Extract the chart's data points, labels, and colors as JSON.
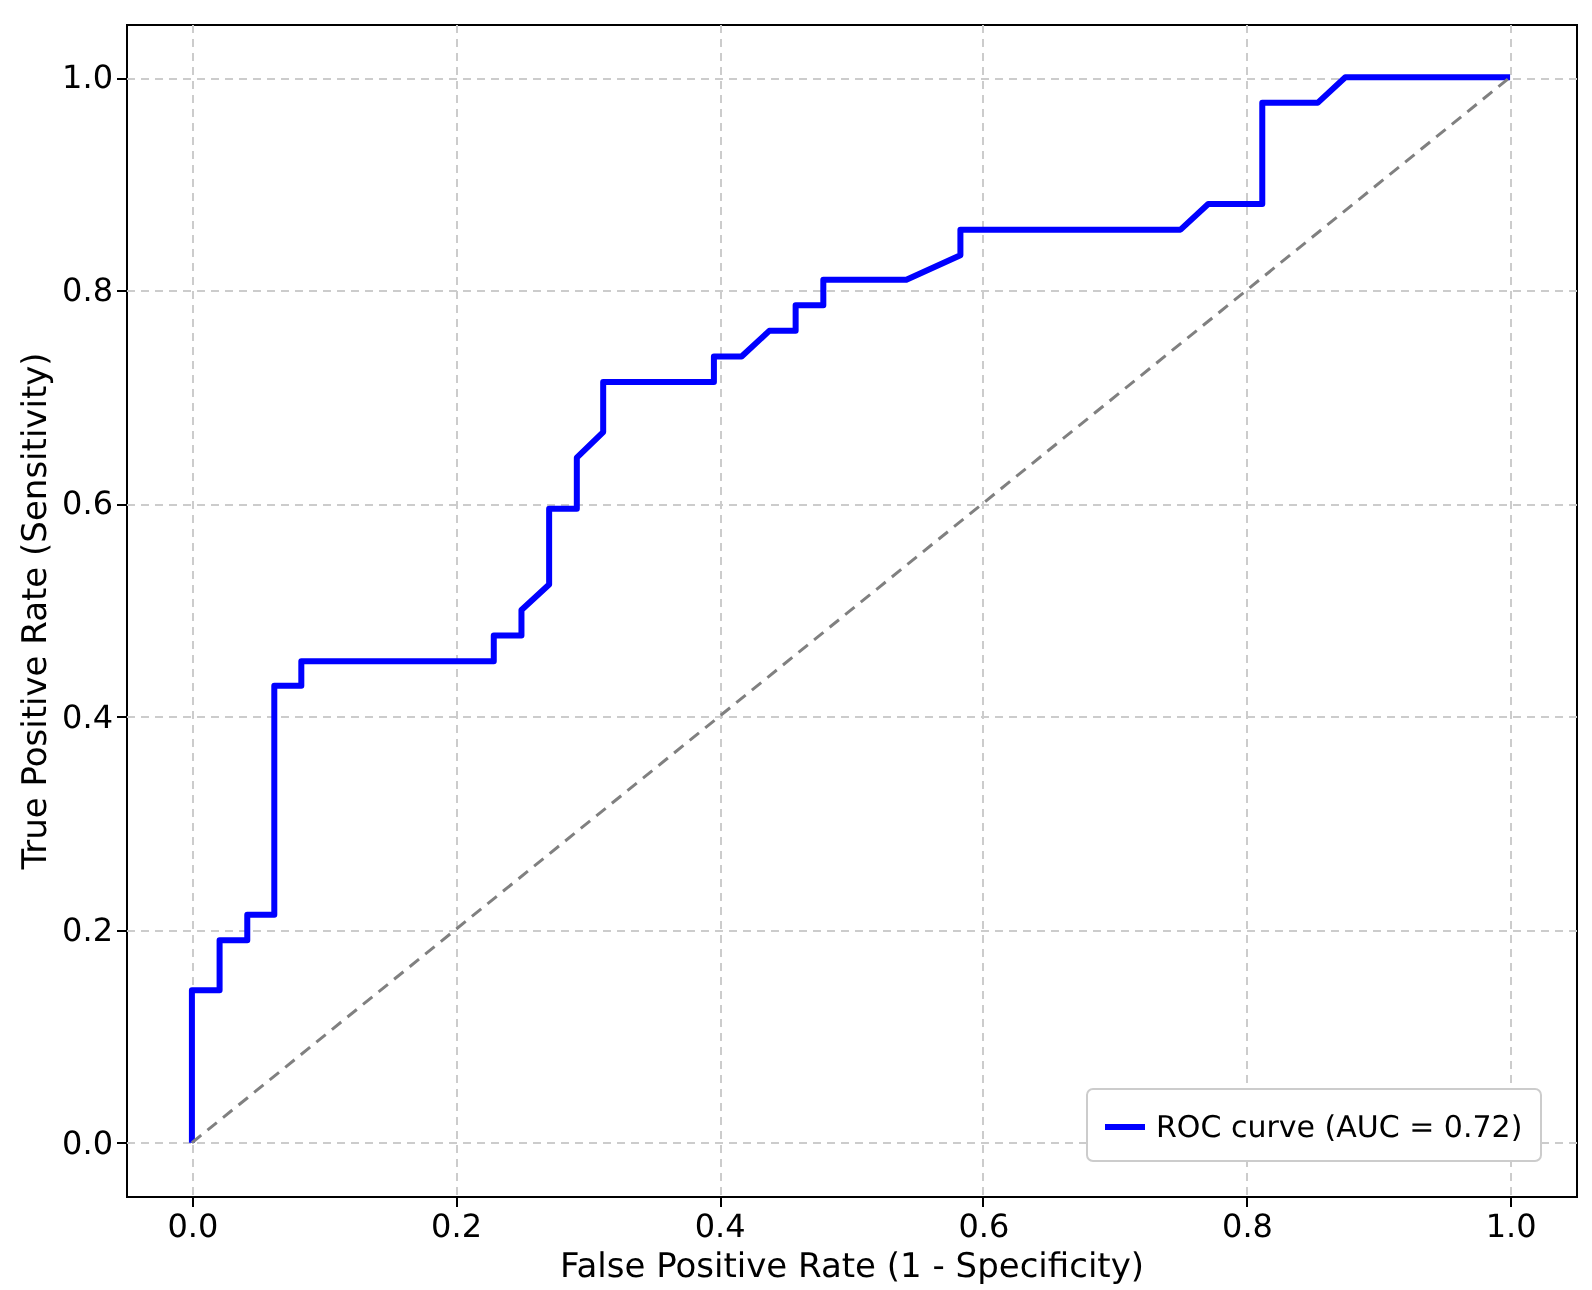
{
  "chart_data": {
    "type": "line",
    "xlabel": "False Positive Rate (1 - Specificity)",
    "ylabel": "True Positive Rate (Sensitivity)",
    "xlim": [
      -0.05,
      1.05
    ],
    "ylim": [
      -0.05,
      1.05
    ],
    "xticks": [
      {
        "value": 0,
        "label": "0.0"
      },
      {
        "value": 0.2,
        "label": "0.2"
      },
      {
        "value": 0.4,
        "label": "0.4"
      },
      {
        "value": 0.6,
        "label": "0.6"
      },
      {
        "value": 0.8,
        "label": "0.8"
      },
      {
        "value": 1,
        "label": "1.0"
      }
    ],
    "yticks": [
      {
        "value": 0,
        "label": "0.0"
      },
      {
        "value": 0.2,
        "label": "0.2"
      },
      {
        "value": 0.4,
        "label": "0.4"
      },
      {
        "value": 0.6,
        "label": "0.6"
      },
      {
        "value": 0.8,
        "label": "0.8"
      },
      {
        "value": 1,
        "label": "1.0"
      }
    ],
    "grid": true,
    "legend": "bottom right",
    "series": [
      {
        "name": "ROC curve (AUC = 0.72)",
        "color": "#0000ff",
        "line_style": "solid",
        "x": [
          0,
          0,
          0.021,
          0.021,
          0.042,
          0.042,
          0.0625,
          0.0625,
          0.083,
          0.083,
          0.229,
          0.229,
          0.25,
          0.25,
          0.271,
          0.271,
          0.292,
          0.292,
          0.312,
          0.312,
          0.396,
          0.396,
          0.417,
          0.438,
          0.458,
          0.458,
          0.479,
          0.479,
          0.542,
          0.583,
          0.583,
          0.75,
          0.771,
          0.812,
          0.812,
          0.854,
          0.875,
          1.0
        ],
        "values": [
          0,
          0.143,
          0.143,
          0.19,
          0.19,
          0.214,
          0.214,
          0.429,
          0.429,
          0.452,
          0.452,
          0.476,
          0.476,
          0.5,
          0.524,
          0.595,
          0.595,
          0.643,
          0.667,
          0.714,
          0.714,
          0.738,
          0.738,
          0.762,
          0.762,
          0.786,
          0.786,
          0.81,
          0.81,
          0.833,
          0.857,
          0.857,
          0.881,
          0.881,
          0.976,
          0.976,
          1.0,
          1.0
        ]
      },
      {
        "color": "#808080",
        "line_style": "dashed",
        "x": [
          0,
          1
        ],
        "values": [
          0,
          1
        ]
      }
    ]
  }
}
